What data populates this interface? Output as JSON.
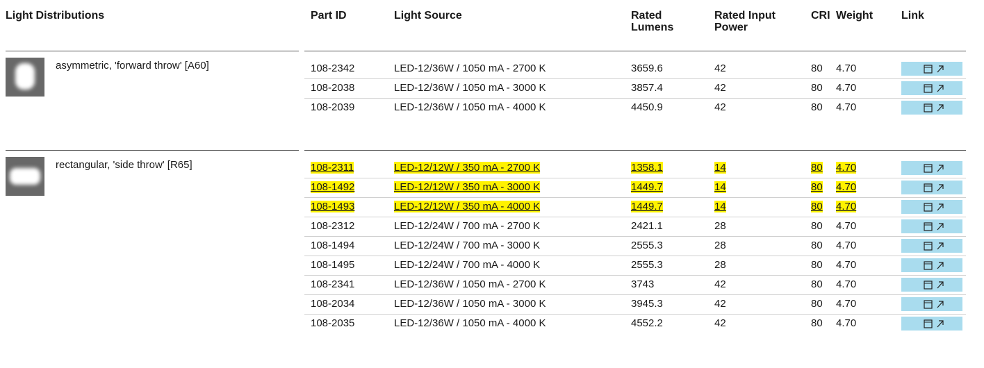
{
  "header": {
    "title": "Light Distributions",
    "columns": [
      "Part ID",
      "Light Source",
      "Rated Lumens",
      "Rated Input Power",
      "CRI",
      "Weight",
      "Link"
    ]
  },
  "groups": [
    {
      "distribution": "asymmetric, 'forward throw' [A60]",
      "shape": "round",
      "rows": [
        {
          "cells": [
            "108-2342",
            "LED-12/36W / 1050 mA - 2700 K",
            "3659.6",
            "42",
            "80",
            "4.70"
          ],
          "highlighted": false
        },
        {
          "cells": [
            "108-2038",
            "LED-12/36W / 1050 mA - 3000 K",
            "3857.4",
            "42",
            "80",
            "4.70"
          ],
          "highlighted": false
        },
        {
          "cells": [
            "108-2039",
            "LED-12/36W / 1050 mA - 4000 K",
            "4450.9",
            "42",
            "80",
            "4.70"
          ],
          "highlighted": false
        }
      ]
    },
    {
      "distribution": "rectangular, 'side throw' [R65]",
      "shape": "wide",
      "rows": [
        {
          "cells": [
            "108-2311",
            "LED-12/12W / 350 mA - 2700 K",
            "1358.1",
            "14",
            "80",
            "4.70"
          ],
          "highlighted": true
        },
        {
          "cells": [
            "108-1492",
            "LED-12/12W / 350 mA - 3000 K",
            "1449.7",
            "14",
            "80",
            "4.70"
          ],
          "highlighted": true
        },
        {
          "cells": [
            "108-1493",
            "LED-12/12W / 350 mA - 4000 K",
            "1449.7",
            "14",
            "80",
            "4.70"
          ],
          "highlighted": true
        },
        {
          "cells": [
            "108-2312",
            "LED-12/24W / 700 mA - 2700 K",
            "2421.1",
            "28",
            "80",
            "4.70"
          ],
          "highlighted": false
        },
        {
          "cells": [
            "108-1494",
            "LED-12/24W / 700 mA - 3000 K",
            "2555.3",
            "28",
            "80",
            "4.70"
          ],
          "highlighted": false
        },
        {
          "cells": [
            "108-1495",
            "LED-12/24W / 700 mA - 4000 K",
            "2555.3",
            "28",
            "80",
            "4.70"
          ],
          "highlighted": false
        },
        {
          "cells": [
            "108-2341",
            "LED-12/36W / 1050 mA - 2700 K",
            "3743",
            "42",
            "80",
            "4.70"
          ],
          "highlighted": false
        },
        {
          "cells": [
            "108-2034",
            "LED-12/36W / 1050 mA - 3000 K",
            "3945.3",
            "42",
            "80",
            "4.70"
          ],
          "highlighted": false
        },
        {
          "cells": [
            "108-2035",
            "LED-12/36W / 1050 mA - 4000 K",
            "4552.2",
            "42",
            "80",
            "4.70"
          ],
          "highlighted": false
        }
      ]
    }
  ]
}
